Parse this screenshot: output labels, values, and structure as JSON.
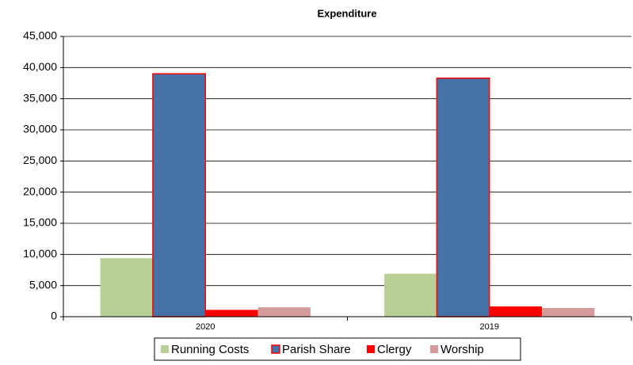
{
  "chart_data": {
    "type": "bar",
    "title": "Expenditure",
    "categories": [
      "2020",
      "2019"
    ],
    "series": [
      {
        "name": "Running Costs",
        "color": "#b9cf95",
        "values": [
          9400,
          6900
        ]
      },
      {
        "name": "Parish Share",
        "color": "#4572a7",
        "border": "#ff0000",
        "values": [
          39000,
          38300
        ]
      },
      {
        "name": "Clergy",
        "color": "#ff0000",
        "values": [
          1100,
          1650
        ]
      },
      {
        "name": "Worship",
        "color": "#d59b9b",
        "values": [
          1500,
          1400
        ]
      }
    ],
    "ylim": [
      0,
      45000
    ],
    "yticks": [
      0,
      {
        "value": 5000,
        "label": "5,000"
      },
      {
        "value": 10000,
        "label": "10,000"
      },
      {
        "value": 15000,
        "label": "15,000"
      },
      {
        "value": 20000,
        "label": "20,000"
      },
      {
        "value": 25000,
        "label": "25,000"
      },
      {
        "value": 30000,
        "label": "30,000"
      },
      {
        "value": 35000,
        "label": "35,000"
      },
      {
        "value": 40000,
        "label": "40,000"
      },
      {
        "value": 45000,
        "label": "45,000"
      }
    ],
    "grid": true,
    "legend": "bottom"
  }
}
